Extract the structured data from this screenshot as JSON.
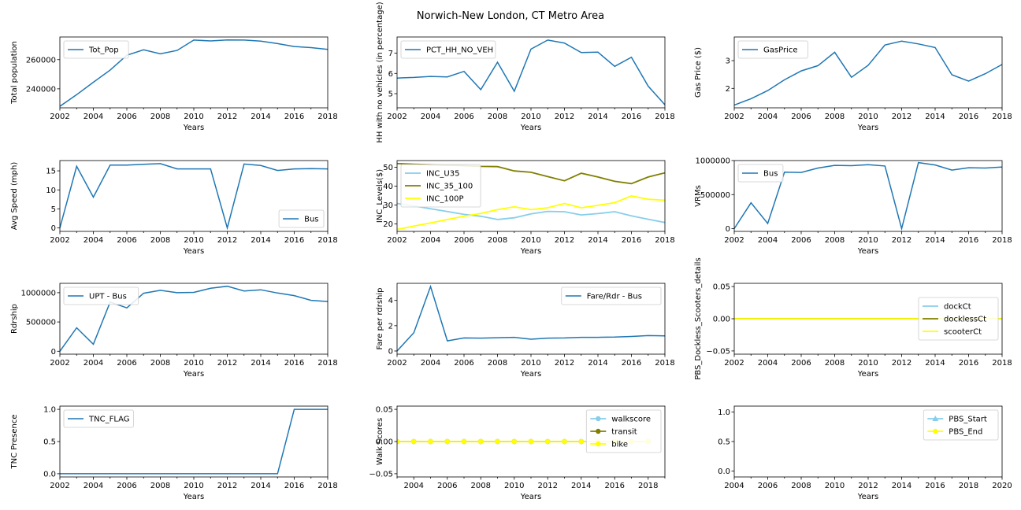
{
  "figure": {
    "title": "Norwich-New London, CT Metro Area"
  },
  "chart_data": [
    {
      "type": "line",
      "ylabel": "Total population",
      "xlabel": "Years",
      "x": [
        2002,
        2003,
        2004,
        2005,
        2006,
        2007,
        2008,
        2009,
        2010,
        2011,
        2012,
        2013,
        2014,
        2015,
        2016,
        2017,
        2018
      ],
      "xlim": [
        2002,
        2018
      ],
      "xticks": [
        "2002",
        "2004",
        "2006",
        "2008",
        "2010",
        "2012",
        "2014",
        "2016",
        "2018"
      ],
      "ylim": [
        227000,
        275500
      ],
      "yticks": [
        {
          "v": 240000,
          "label": "240000"
        },
        {
          "v": 260000,
          "label": "260000"
        }
      ],
      "legend": "upper left",
      "series": [
        {
          "name": "Tot_Pop",
          "color": "#1f77b4",
          "values": [
            228000,
            236000,
            244500,
            252800,
            263000,
            266700,
            264000,
            266300,
            273400,
            272800,
            273500,
            273400,
            272700,
            271000,
            269000,
            268200,
            267000
          ]
        }
      ]
    },
    {
      "type": "line",
      "ylabel": "HH with no vehicles (in percentage)",
      "xlabel": "Years",
      "x": [
        2002,
        2003,
        2004,
        2005,
        2006,
        2007,
        2008,
        2009,
        2010,
        2011,
        2012,
        2013,
        2014,
        2015,
        2016,
        2017,
        2018
      ],
      "xlim": [
        2002,
        2018
      ],
      "xticks": [
        "2002",
        "2004",
        "2006",
        "2008",
        "2010",
        "2012",
        "2014",
        "2016",
        "2018"
      ],
      "ylim": [
        4.3,
        7.8
      ],
      "yticks": [
        {
          "v": 5,
          "label": "5"
        },
        {
          "v": 6,
          "label": "6"
        },
        {
          "v": 7,
          "label": "7"
        }
      ],
      "legend": "upper left",
      "series": [
        {
          "name": "PCT_HH_NO_VEH",
          "color": "#1f77b4",
          "values": [
            5.77,
            5.8,
            5.85,
            5.83,
            6.1,
            5.2,
            6.55,
            5.12,
            7.2,
            7.65,
            7.5,
            7.03,
            7.05,
            6.35,
            6.8,
            5.37,
            4.45
          ]
        }
      ]
    },
    {
      "type": "line",
      "ylabel": "Gas Price ($)",
      "xlabel": "Years",
      "x": [
        2002,
        2003,
        2004,
        2005,
        2006,
        2007,
        2008,
        2009,
        2010,
        2011,
        2012,
        2013,
        2014,
        2015,
        2016,
        2017,
        2018
      ],
      "xlim": [
        2002,
        2018
      ],
      "xticks": [
        "2002",
        "2004",
        "2006",
        "2008",
        "2010",
        "2012",
        "2014",
        "2016",
        "2018"
      ],
      "ylim": [
        1.3,
        3.85
      ],
      "yticks": [
        {
          "v": 2,
          "label": "2"
        },
        {
          "v": 3,
          "label": "3"
        }
      ],
      "legend": "upper left",
      "series": [
        {
          "name": "GasPrice",
          "color": "#1f77b4",
          "values": [
            1.4,
            1.63,
            1.92,
            2.31,
            2.63,
            2.82,
            3.3,
            2.4,
            2.83,
            3.56,
            3.7,
            3.6,
            3.47,
            2.49,
            2.26,
            2.53,
            2.86
          ]
        }
      ]
    },
    {
      "type": "line",
      "ylabel": "Avg Speed (mph)",
      "xlabel": "Years",
      "x": [
        2002,
        2003,
        2004,
        2005,
        2006,
        2007,
        2008,
        2009,
        2010,
        2011,
        2012,
        2013,
        2014,
        2015,
        2016,
        2017,
        2018
      ],
      "xlim": [
        2002,
        2018
      ],
      "xticks": [
        "2002",
        "2004",
        "2006",
        "2008",
        "2010",
        "2012",
        "2014",
        "2016",
        "2018"
      ],
      "ylim": [
        -0.9,
        17.7
      ],
      "yticks": [
        {
          "v": 0,
          "label": "0"
        },
        {
          "v": 5,
          "label": "5"
        },
        {
          "v": 10,
          "label": "10"
        },
        {
          "v": 15,
          "label": "15"
        }
      ],
      "legend": "lower right",
      "series": [
        {
          "name": "Bus",
          "color": "#1f77b4",
          "values": [
            0,
            16.2,
            8.1,
            16.5,
            16.5,
            16.7,
            16.9,
            15.5,
            15.5,
            15.5,
            0,
            16.8,
            16.4,
            15.1,
            15.5,
            15.6,
            15.5
          ]
        }
      ]
    },
    {
      "type": "line",
      "ylabel": "INC_Levels($)",
      "xlabel": "Years",
      "x": [
        2002,
        2003,
        2004,
        2005,
        2006,
        2007,
        2008,
        2009,
        2010,
        2011,
        2012,
        2013,
        2014,
        2015,
        2016,
        2017,
        2018
      ],
      "xlim": [
        2002,
        2018
      ],
      "xticks": [
        "2002",
        "2004",
        "2006",
        "2008",
        "2010",
        "2012",
        "2014",
        "2016",
        "2018"
      ],
      "ylim": [
        16,
        53.5
      ],
      "yticks": [
        {
          "v": 20,
          "label": "20"
        },
        {
          "v": 30,
          "label": "30"
        },
        {
          "v": 40,
          "label": "40"
        },
        {
          "v": 50,
          "label": "50"
        }
      ],
      "legend": "upper left",
      "series": [
        {
          "name": "INC_U35",
          "color": "#87ceeb",
          "values": [
            30.8,
            29.5,
            28,
            26.5,
            25,
            24,
            22.3,
            23.2,
            25.3,
            26.6,
            26.4,
            24.7,
            25.4,
            26.4,
            24.2,
            22.4,
            20.7
          ]
        },
        {
          "name": "INC_35_100",
          "color": "#808000",
          "values": [
            51.9,
            51.6,
            51.3,
            51,
            50.8,
            50.4,
            50.3,
            48,
            47.3,
            45,
            42.8,
            46.8,
            44.8,
            42.5,
            41.3,
            44.8,
            47
          ]
        },
        {
          "name": "INC_100P",
          "color": "#ffff00",
          "values": [
            17,
            18.8,
            20.5,
            22.3,
            24,
            25.5,
            27.5,
            29,
            27.5,
            28.5,
            30.8,
            28.5,
            29.8,
            31.2,
            34.8,
            33,
            32.5
          ]
        }
      ]
    },
    {
      "type": "line",
      "ylabel": "VRMs",
      "xlabel": "Years",
      "x": [
        2002,
        2003,
        2004,
        2005,
        2006,
        2007,
        2008,
        2009,
        2010,
        2011,
        2012,
        2013,
        2014,
        2015,
        2016,
        2017,
        2018
      ],
      "xlim": [
        2002,
        2018
      ],
      "xticks": [
        "2002",
        "2004",
        "2006",
        "2008",
        "2010",
        "2012",
        "2014",
        "2016",
        "2018"
      ],
      "ylim": [
        -40000,
        1000000
      ],
      "yticks": [
        {
          "v": 0,
          "label": "0"
        },
        {
          "v": 500000,
          "label": "500000"
        },
        {
          "v": 1000000,
          "label": "1000000"
        }
      ],
      "legend": "upper left",
      "series": [
        {
          "name": "Bus",
          "color": "#1f77b4",
          "values": [
            0,
            380000,
            75000,
            830000,
            825000,
            890000,
            930000,
            925000,
            940000,
            920000,
            0,
            970000,
            935000,
            860000,
            895000,
            890000,
            905000
          ]
        }
      ]
    },
    {
      "type": "line",
      "ylabel": "Rdrship",
      "xlabel": "Years",
      "x": [
        2002,
        2003,
        2004,
        2005,
        2006,
        2007,
        2008,
        2009,
        2010,
        2011,
        2012,
        2013,
        2014,
        2015,
        2016,
        2017,
        2018
      ],
      "xlim": [
        2002,
        2018
      ],
      "xticks": [
        "2002",
        "2004",
        "2006",
        "2008",
        "2010",
        "2012",
        "2014",
        "2016",
        "2018"
      ],
      "ylim": [
        -50000,
        1160000
      ],
      "yticks": [
        {
          "v": 0,
          "label": "0"
        },
        {
          "v": 500000,
          "label": "500000"
        },
        {
          "v": 1000000,
          "label": "1000000"
        }
      ],
      "legend": "upper left",
      "series": [
        {
          "name": "UPT - Bus",
          "color": "#1f77b4",
          "values": [
            0,
            400000,
            120000,
            840000,
            740000,
            990000,
            1040000,
            1000000,
            1005000,
            1075000,
            1110000,
            1030000,
            1050000,
            995000,
            950000,
            870000,
            850000
          ]
        }
      ]
    },
    {
      "type": "line",
      "ylabel": "Fare per rdrship",
      "xlabel": "Years",
      "x": [
        2002,
        2003,
        2004,
        2005,
        2006,
        2007,
        2008,
        2009,
        2010,
        2011,
        2012,
        2013,
        2014,
        2015,
        2016,
        2017,
        2018
      ],
      "xlim": [
        2002,
        2018
      ],
      "xticks": [
        "2002",
        "2004",
        "2006",
        "2008",
        "2010",
        "2012",
        "2014",
        "2016",
        "2018"
      ],
      "ylim": [
        -0.25,
        5.35
      ],
      "yticks": [
        {
          "v": 0,
          "label": "0"
        },
        {
          "v": 2,
          "label": "2"
        },
        {
          "v": 4,
          "label": "4"
        }
      ],
      "legend": "upper right",
      "series": [
        {
          "name": "Fare/Rdr - Bus",
          "color": "#1f77b4",
          "values": [
            0,
            1.45,
            5.1,
            0.8,
            1.03,
            1.02,
            1.05,
            1.08,
            0.93,
            1.02,
            1.03,
            1.08,
            1.08,
            1.1,
            1.15,
            1.22,
            1.2
          ]
        }
      ]
    },
    {
      "type": "line",
      "ylabel": "PBS_Dockless_Scooters_details",
      "xlabel": "Years",
      "x": [
        2002,
        2003,
        2004,
        2005,
        2006,
        2007,
        2008,
        2009,
        2010,
        2011,
        2012,
        2013,
        2014,
        2015,
        2016,
        2017,
        2018
      ],
      "xlim": [
        2002,
        2018
      ],
      "xticks": [
        "2002",
        "2004",
        "2006",
        "2008",
        "2010",
        "2012",
        "2014",
        "2016",
        "2018"
      ],
      "ylim": [
        -0.055,
        0.055
      ],
      "yticks": [
        {
          "v": -0.05,
          "label": "−0.05"
        },
        {
          "v": 0,
          "label": "0.00"
        },
        {
          "v": 0.05,
          "label": "0.05"
        }
      ],
      "legend": "center right",
      "series": [
        {
          "name": "dockCt",
          "color": "#87ceeb",
          "values": [
            0,
            0,
            0,
            0,
            0,
            0,
            0,
            0,
            0,
            0,
            0,
            0,
            0,
            0,
            0,
            0,
            0
          ]
        },
        {
          "name": "docklessCt",
          "color": "#808000",
          "values": [
            0,
            0,
            0,
            0,
            0,
            0,
            0,
            0,
            0,
            0,
            0,
            0,
            0,
            0,
            0,
            0,
            0
          ]
        },
        {
          "name": "scooterCt",
          "color": "#ffff00",
          "values": [
            0,
            0,
            0,
            0,
            0,
            0,
            0,
            0,
            0,
            0,
            0,
            0,
            0,
            0,
            0,
            0,
            0
          ]
        }
      ]
    },
    {
      "type": "line",
      "ylabel": "TNC Presence",
      "xlabel": "Years",
      "x": [
        2002,
        2003,
        2004,
        2005,
        2006,
        2007,
        2008,
        2009,
        2010,
        2011,
        2012,
        2013,
        2014,
        2015,
        2016,
        2017,
        2018
      ],
      "xlim": [
        2002,
        2018
      ],
      "xticks": [
        "2002",
        "2004",
        "2006",
        "2008",
        "2010",
        "2012",
        "2014",
        "2016",
        "2018"
      ],
      "ylim": [
        -0.05,
        1.05
      ],
      "yticks": [
        {
          "v": 0,
          "label": "0.0"
        },
        {
          "v": 0.5,
          "label": "0.5"
        },
        {
          "v": 1,
          "label": "1.0"
        }
      ],
      "legend": "upper left",
      "series": [
        {
          "name": "TNC_FLAG",
          "color": "#1f77b4",
          "values": [
            0,
            0,
            0,
            0,
            0,
            0,
            0,
            0,
            0,
            0,
            0,
            0,
            0,
            0,
            1,
            1,
            1
          ]
        }
      ]
    },
    {
      "type": "line",
      "ylabel": "Walk Scores",
      "xlabel": "Years",
      "x": [
        2003,
        2004,
        2005,
        2006,
        2007,
        2008,
        2009,
        2010,
        2011,
        2012,
        2013,
        2014,
        2015,
        2016,
        2017,
        2018
      ],
      "xlim": [
        2003,
        2019
      ],
      "xticks": [
        "2004",
        "2006",
        "2008",
        "2010",
        "2012",
        "2014",
        "2016",
        "2018"
      ],
      "ylim": [
        -0.055,
        0.055
      ],
      "yticks": [
        {
          "v": -0.05,
          "label": "−0.05"
        },
        {
          "v": 0,
          "label": "0.00"
        },
        {
          "v": 0.05,
          "label": "0.05"
        }
      ],
      "legend": "upper right",
      "series": [
        {
          "name": "walkscore",
          "color": "#87ceeb",
          "marker": "circle",
          "values": [
            0,
            0,
            0,
            0,
            0,
            0,
            0,
            0,
            0,
            0,
            0,
            0,
            0,
            0,
            0,
            0
          ]
        },
        {
          "name": "transit",
          "color": "#808000",
          "marker": "circle",
          "values": [
            0,
            0,
            0,
            0,
            0,
            0,
            0,
            0,
            0,
            0,
            0,
            0,
            0,
            0,
            0,
            0
          ]
        },
        {
          "name": "bike",
          "color": "#ffff00",
          "marker": "circle",
          "values": [
            0,
            0,
            0,
            0,
            0,
            0,
            0,
            0,
            0,
            0,
            0,
            0,
            0,
            0,
            0,
            0
          ]
        }
      ]
    },
    {
      "type": "line",
      "ylabel": "",
      "xlabel": "Years",
      "x": [],
      "xlim": [
        2004,
        2020
      ],
      "xticks": [
        "2004",
        "2006",
        "2008",
        "2010",
        "2012",
        "2014",
        "2016",
        "2018",
        "2020"
      ],
      "ylim": [
        -0.1,
        1.1
      ],
      "yticks": [
        {
          "v": 0,
          "label": "0.0"
        },
        {
          "v": 0.5,
          "label": "0.5"
        },
        {
          "v": 1,
          "label": "1.0"
        }
      ],
      "legend": "upper right",
      "series": [
        {
          "name": "PBS_Start",
          "color": "#87ceeb",
          "marker": "triangle",
          "values": []
        },
        {
          "name": "PBS_End",
          "color": "#ffff00",
          "marker": "circle",
          "values": []
        }
      ]
    }
  ]
}
